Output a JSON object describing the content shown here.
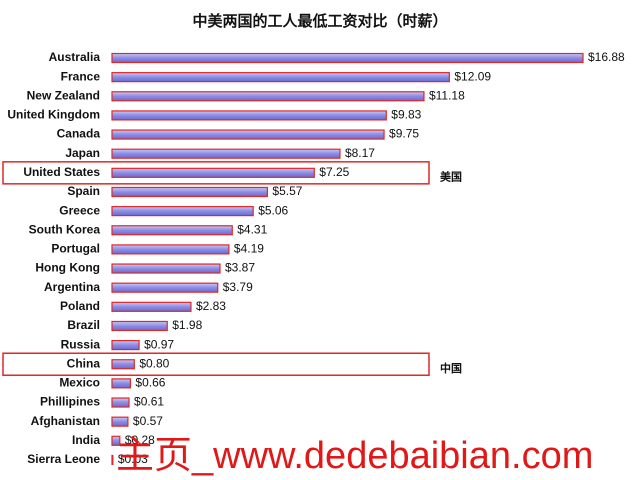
{
  "chart_data": {
    "type": "bar",
    "orientation": "horizontal",
    "title": "中美两国的工人最低工资对比（时薪）",
    "categories": [
      "Australia",
      "France",
      "New Zealand",
      "United Kingdom",
      "Canada",
      "Japan",
      "United States",
      "Spain",
      "Greece",
      "South Korea",
      "Portugal",
      "Hong Kong",
      "Argentina",
      "Poland",
      "Brazil",
      "Russia",
      "China",
      "Mexico",
      "Phillipines",
      "Afghanistan",
      "India",
      "Sierra Leone"
    ],
    "values": [
      16.88,
      12.09,
      11.18,
      9.83,
      9.75,
      8.17,
      7.25,
      5.57,
      5.06,
      4.31,
      4.19,
      3.87,
      3.79,
      2.83,
      1.98,
      0.97,
      0.8,
      0.66,
      0.61,
      0.57,
      0.28,
      0.03
    ],
    "value_labels": [
      "$16.88",
      "$12.09",
      "$11.18",
      "$9.83",
      "$9.75",
      "$8.17",
      "$7.25",
      "$5.57",
      "$5.06",
      "$4.31",
      "$4.19",
      "$3.87",
      "$3.79",
      "$2.83",
      "$1.98",
      "$0.97",
      "$0.80",
      "$0.66",
      "$0.61",
      "$0.57",
      "$0.28",
      "$0.03"
    ],
    "color": "#8c8ce6",
    "edge_color": "#e02828",
    "annotations": [
      {
        "text": "美国",
        "category": "United States"
      },
      {
        "text": "中国",
        "category": "China"
      }
    ],
    "watermark": "主页_www.dedebaibian.com"
  }
}
